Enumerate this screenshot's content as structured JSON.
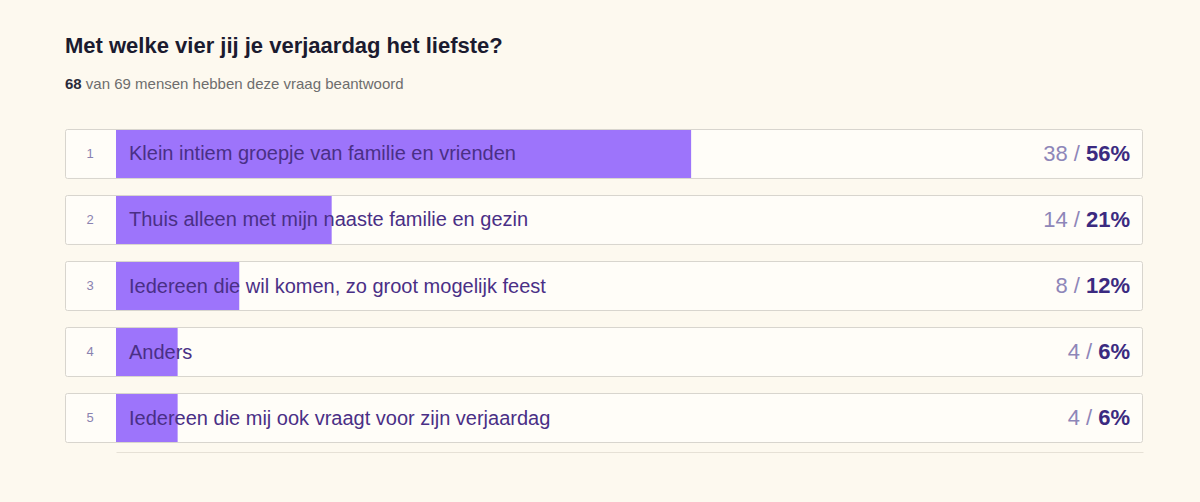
{
  "chart_data": {
    "type": "bar",
    "orientation": "horizontal",
    "title": "Met welke vier jij je verjaardag het liefste?",
    "subtitle": "68 van 69 mensen hebben deze vraag beantwoord",
    "ranks": [
      1,
      2,
      3,
      4,
      5
    ],
    "categories": [
      "Klein intiem groepje van familie en vrienden",
      "Thuis alleen met mijn naaste familie en gezin",
      "Iedereen die wil komen, zo groot mogelijk feest",
      "Anders",
      "Iedereen die mij ook vraagt voor zijn verjaardag"
    ],
    "values": [
      56,
      21,
      12,
      6,
      6
    ],
    "value_labels": [
      "38 / 56%",
      "14 / 21%",
      "8 / 12%",
      "4 / 6%",
      "4 / 6%"
    ],
    "data_labels": true,
    "color": "#9d74fb",
    "xlim": [
      0,
      100
    ],
    "xticks": [],
    "tick_labels": false,
    "grid": false
  }
}
